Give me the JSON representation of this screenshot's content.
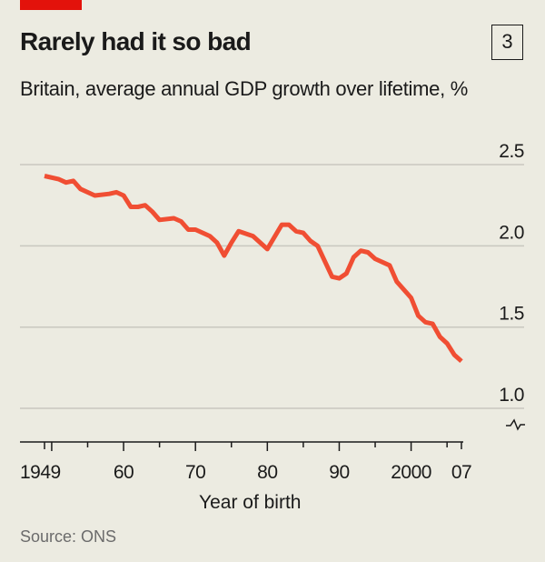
{
  "header": {
    "title": "Rarely had it so bad",
    "chart_number": "3",
    "subtitle": "Britain, average annual GDP growth over lifetime, %"
  },
  "source": "Source: ONS",
  "colors": {
    "line": "#f04e33",
    "accent_bar": "#e3120b",
    "background": "#ecebe1",
    "grid": "#c9c8bf"
  },
  "chart_data": {
    "type": "line",
    "title": "Rarely had it so bad",
    "subtitle": "Britain, average annual GDP growth over lifetime, %",
    "xlabel": "Year of birth",
    "ylabel": "",
    "xlim": [
      1946,
      2007
    ],
    "ylim": [
      1.0,
      2.5
    ],
    "y_axis_broken": true,
    "y_ticks": [
      2.5,
      2.0,
      1.5,
      1.0
    ],
    "y_tick_labels": [
      "2.5",
      "2.0",
      "1.5",
      "1.0"
    ],
    "x_ticks": [
      1949,
      1960,
      1970,
      1980,
      1990,
      2000,
      2007
    ],
    "x_tick_labels": [
      "1949",
      "60",
      "70",
      "80",
      "90",
      "2000",
      "07"
    ],
    "grid": true,
    "y_axis_position": "right",
    "x": [
      1949,
      1951,
      1952,
      1953,
      1954,
      1956,
      1958,
      1959,
      1960,
      1961,
      1962,
      1963,
      1964,
      1965,
      1967,
      1968,
      1969,
      1970,
      1972,
      1973,
      1974,
      1975,
      1976,
      1978,
      1980,
      1982,
      1983,
      1984,
      1985,
      1986,
      1987,
      1989,
      1990,
      1991,
      1992,
      1993,
      1994,
      1995,
      1997,
      1998,
      2000,
      2001,
      2002,
      2003,
      2004,
      2005,
      2006,
      2007
    ],
    "y": [
      2.43,
      2.41,
      2.39,
      2.4,
      2.35,
      2.31,
      2.32,
      2.33,
      2.31,
      2.24,
      2.24,
      2.25,
      2.21,
      2.16,
      2.17,
      2.15,
      2.1,
      2.1,
      2.06,
      2.02,
      1.94,
      2.02,
      2.09,
      2.06,
      1.98,
      2.13,
      2.13,
      2.09,
      2.08,
      2.03,
      2.0,
      1.81,
      1.8,
      1.83,
      1.93,
      1.97,
      1.96,
      1.92,
      1.88,
      1.78,
      1.68,
      1.57,
      1.53,
      1.52,
      1.44,
      1.4,
      1.33,
      1.29
    ]
  }
}
